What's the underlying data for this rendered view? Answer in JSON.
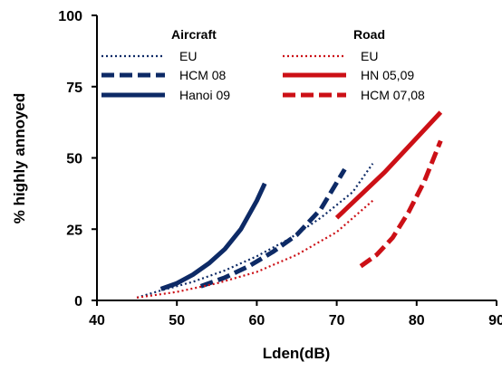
{
  "chart_data": {
    "type": "line",
    "title": "",
    "xlabel": "Lden(dB)",
    "ylabel": "% highly annoyed",
    "xlim": [
      40,
      90
    ],
    "ylim": [
      0,
      100
    ],
    "xticks": [
      "40",
      "50",
      "60",
      "70",
      "80",
      "90"
    ],
    "yticks": [
      "0",
      "25",
      "50",
      "75",
      "100"
    ],
    "grid": false,
    "legend_position": "top",
    "legend_groups": [
      {
        "heading": "Aircraft",
        "color": "#0d2a66"
      },
      {
        "heading": "Road",
        "color": "#cc1016"
      }
    ],
    "series": [
      {
        "name": "EU",
        "group": "Aircraft",
        "color": "#0d2a66",
        "style": "dotted",
        "x": [
          45,
          48,
          52,
          56,
          60,
          64,
          68,
          72,
          74.5
        ],
        "y": [
          1,
          3.5,
          6.5,
          10.5,
          15.5,
          21.5,
          29,
          38,
          48
        ]
      },
      {
        "name": "HCM 08",
        "group": "Aircraft",
        "color": "#0d2a66",
        "style": "dashed",
        "x": [
          53,
          56,
          59,
          62,
          65,
          68,
          71
        ],
        "y": [
          5,
          8,
          12,
          17,
          23,
          32,
          46
        ]
      },
      {
        "name": "Hanoi 09",
        "group": "Aircraft",
        "color": "#0d2a66",
        "style": "solid",
        "x": [
          48,
          50,
          52,
          54,
          56,
          58,
          60,
          61
        ],
        "y": [
          4,
          6,
          9,
          13,
          18,
          25,
          35,
          41
        ]
      },
      {
        "name": "EU",
        "group": "Road",
        "color": "#cc1016",
        "style": "dotted",
        "x": [
          45,
          50,
          55,
          60,
          65,
          70,
          74.5
        ],
        "y": [
          1,
          3,
          6,
          10,
          16,
          24,
          35
        ]
      },
      {
        "name": "HN 05,09",
        "group": "Road",
        "color": "#cc1016",
        "style": "solid",
        "x": [
          70,
          73,
          76,
          79,
          83
        ],
        "y": [
          29,
          37,
          45,
          54,
          66
        ]
      },
      {
        "name": "HCM 07,08",
        "group": "Road",
        "color": "#cc1016",
        "style": "dashed",
        "x": [
          73,
          75,
          77,
          79,
          81,
          83
        ],
        "y": [
          12,
          16,
          22,
          31,
          42,
          56
        ]
      }
    ]
  }
}
